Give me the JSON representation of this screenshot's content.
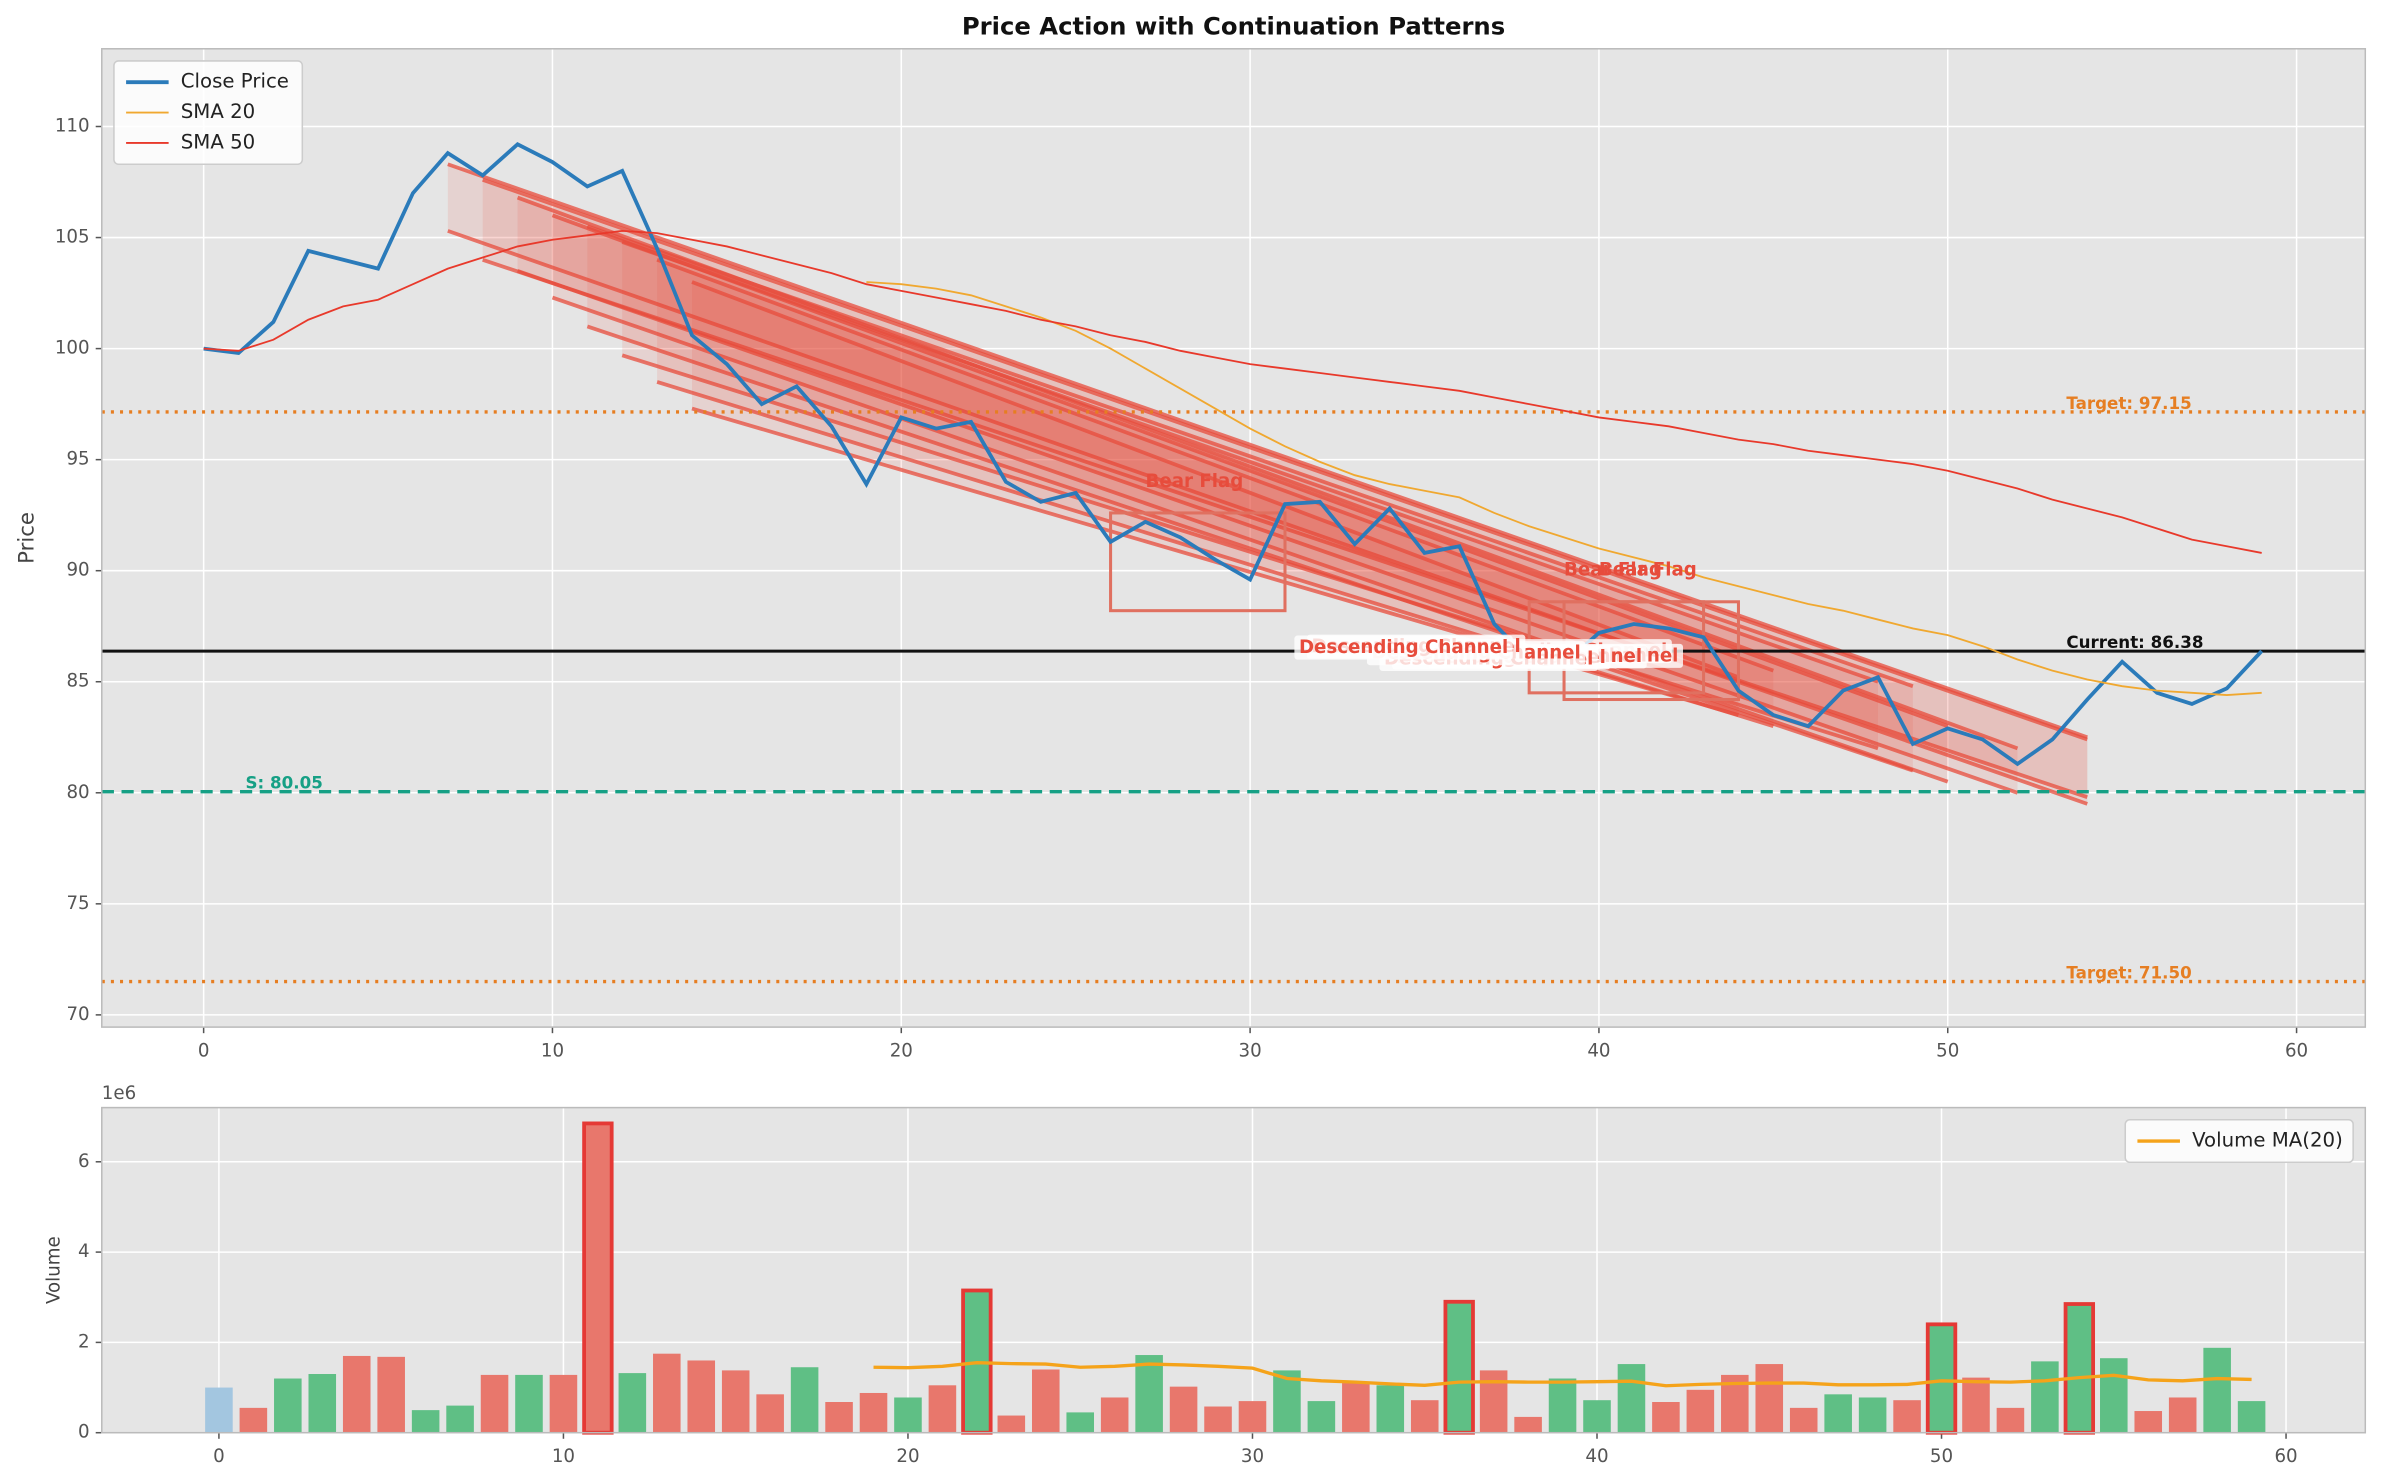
{
  "chart_data": [
    {
      "type": "line",
      "title": "Price Action with Continuation Patterns",
      "ylabel": "Price",
      "xlim": [
        -2.92,
        61.97
      ],
      "ylim": [
        69.45,
        113.5
      ],
      "xticks": [
        0,
        10,
        20,
        30,
        40,
        50,
        60
      ],
      "yticks": [
        70,
        75,
        80,
        85,
        90,
        95,
        100,
        105,
        110
      ],
      "grid": true,
      "legend": "upper left",
      "x": [
        0,
        1,
        2,
        3,
        4,
        5,
        6,
        7,
        8,
        9,
        10,
        11,
        12,
        13,
        14,
        15,
        16,
        17,
        18,
        19,
        20,
        21,
        22,
        23,
        24,
        25,
        26,
        27,
        28,
        29,
        30,
        31,
        32,
        33,
        34,
        35,
        36,
        37,
        38,
        39,
        40,
        41,
        42,
        43,
        44,
        45,
        46,
        47,
        48,
        49,
        50,
        51,
        52,
        53,
        54,
        55,
        56,
        57,
        58,
        59
      ],
      "series": [
        {
          "name": "Close Price",
          "color": "#2b7bba",
          "width": 2.5,
          "values": [
            100.0,
            99.8,
            101.2,
            104.4,
            104.0,
            103.6,
            107.0,
            108.8,
            107.8,
            109.2,
            108.4,
            107.3,
            108.0,
            104.5,
            100.6,
            99.3,
            97.5,
            98.3,
            96.5,
            93.9,
            96.9,
            96.4,
            96.7,
            94.0,
            93.1,
            93.5,
            91.3,
            92.2,
            91.5,
            90.5,
            89.6,
            93.0,
            93.1,
            91.2,
            92.8,
            90.8,
            91.1,
            87.6,
            86.0,
            85.8,
            87.2,
            87.6,
            87.4,
            87.0,
            84.6,
            83.5,
            83.0,
            84.6,
            85.2,
            82.2,
            82.9,
            82.4,
            81.3,
            82.4,
            84.2,
            85.9,
            84.5,
            84.0,
            84.7,
            86.38
          ]
        },
        {
          "name": "SMA 20",
          "color": "#f0a830",
          "width": 1.2,
          "values": [
            null,
            null,
            null,
            null,
            null,
            null,
            null,
            null,
            null,
            null,
            null,
            null,
            null,
            null,
            null,
            null,
            null,
            null,
            null,
            103.0,
            102.9,
            102.7,
            102.4,
            101.9,
            101.4,
            100.8,
            100.0,
            99.1,
            98.2,
            97.3,
            96.4,
            95.6,
            94.9,
            94.3,
            93.9,
            93.6,
            93.3,
            92.6,
            92.0,
            91.5,
            91.0,
            90.6,
            90.2,
            89.7,
            89.3,
            88.9,
            88.5,
            88.2,
            87.8,
            87.4,
            87.1,
            86.6,
            86.0,
            85.5,
            85.1,
            84.8,
            84.6,
            84.5,
            84.4,
            84.5
          ]
        },
        {
          "name": "SMA 50",
          "color": "#e8392b",
          "width": 1.2,
          "values": [
            100.0,
            99.9,
            100.4,
            101.3,
            101.9,
            102.2,
            102.9,
            103.6,
            104.1,
            104.6,
            104.9,
            105.1,
            105.3,
            105.2,
            104.9,
            104.6,
            104.2,
            103.8,
            103.4,
            102.9,
            102.6,
            102.3,
            102.0,
            101.7,
            101.3,
            101.0,
            100.6,
            100.3,
            99.9,
            99.6,
            99.3,
            99.1,
            98.9,
            98.7,
            98.5,
            98.3,
            98.1,
            97.8,
            97.5,
            97.2,
            96.9,
            96.7,
            96.5,
            96.2,
            95.9,
            95.7,
            95.4,
            95.2,
            95.0,
            94.8,
            94.5,
            94.1,
            93.7,
            93.2,
            92.8,
            92.4,
            91.9,
            91.4,
            91.1,
            90.8
          ]
        }
      ],
      "hlines": [
        {
          "label": "Target: 97.15",
          "value": 97.15,
          "color": "#e67e22",
          "style": "dotted",
          "label_side": "right"
        },
        {
          "label": "Target: 71.50",
          "value": 71.5,
          "color": "#e67e22",
          "style": "dotted",
          "label_side": "right"
        },
        {
          "label": "S: 80.05",
          "value": 80.05,
          "color": "#16a085",
          "style": "dashed",
          "label_side": "left"
        },
        {
          "label": "Current: 86.38",
          "value": 86.38,
          "color": "#111111",
          "style": "solid",
          "label_side": "right"
        }
      ],
      "patterns": [
        {
          "label": "Descending Channel",
          "x": [
            7,
            54
          ],
          "upper": [
            108.3,
            82.5
          ],
          "lower": [
            105.3,
            79.5
          ]
        },
        {
          "label": "Descending Channel",
          "x": [
            8,
            54
          ],
          "upper": [
            107.6,
            82.4
          ],
          "lower": [
            104.0,
            79.8
          ]
        },
        {
          "label": "Descending Channel",
          "x": [
            9,
            52
          ],
          "upper": [
            106.8,
            82.0
          ],
          "lower": [
            103.5,
            80.0
          ]
        },
        {
          "label": "Descending Channel",
          "x": [
            10,
            50
          ],
          "upper": [
            106.0,
            83.0
          ],
          "lower": [
            102.3,
            80.5
          ]
        },
        {
          "label": "Descending Channel",
          "x": [
            11,
            49
          ],
          "upper": [
            105.5,
            84.8
          ],
          "lower": [
            101.0,
            81.0
          ]
        },
        {
          "label": "Descending Channel",
          "x": [
            12,
            48
          ],
          "upper": [
            104.8,
            85.0
          ],
          "lower": [
            99.7,
            82.0
          ]
        },
        {
          "label": "Descending Channel",
          "x": [
            13,
            45
          ],
          "upper": [
            104.0,
            85.5
          ],
          "lower": [
            98.5,
            83.0
          ]
        },
        {
          "label": "Descending Channel",
          "x": [
            14,
            44
          ],
          "upper": [
            103.0,
            85.2
          ],
          "lower": [
            97.3,
            83.5
          ]
        }
      ],
      "flags": [
        {
          "label": "Bear Flag",
          "x": [
            26,
            31
          ],
          "box": [
            88.2,
            92.6
          ]
        },
        {
          "label": "Bear Flag",
          "x": [
            38,
            43
          ],
          "box": [
            84.5,
            88.6
          ]
        },
        {
          "label": "Bear Flag",
          "x": [
            39,
            44
          ],
          "box": [
            84.2,
            88.6
          ]
        }
      ]
    },
    {
      "type": "bar",
      "ylabel": "Volume",
      "offset_label": "1e6",
      "xlim": [
        -3.4,
        62.3
      ],
      "ylim": [
        0,
        7.2
      ],
      "xticks": [
        0,
        10,
        20,
        30,
        40,
        50,
        60
      ],
      "yticks": [
        0,
        2,
        4,
        6
      ],
      "grid": true,
      "legend": "upper right",
      "x": [
        0,
        1,
        2,
        3,
        4,
        5,
        6,
        7,
        8,
        9,
        10,
        11,
        12,
        13,
        14,
        15,
        16,
        17,
        18,
        19,
        20,
        21,
        22,
        23,
        24,
        25,
        26,
        27,
        28,
        29,
        30,
        31,
        32,
        33,
        34,
        35,
        36,
        37,
        38,
        39,
        40,
        41,
        42,
        43,
        44,
        45,
        46,
        47,
        48,
        49,
        50,
        51,
        52,
        53,
        54,
        55,
        56,
        57,
        58,
        59
      ],
      "values": [
        1.0,
        0.55,
        1.2,
        1.3,
        1.7,
        1.68,
        0.5,
        0.6,
        1.28,
        1.28,
        1.28,
        6.85,
        1.32,
        1.75,
        1.6,
        1.38,
        0.85,
        1.45,
        0.68,
        0.88,
        0.78,
        1.05,
        3.15,
        0.38,
        1.4,
        0.45,
        0.78,
        1.72,
        1.02,
        0.58,
        0.7,
        1.38,
        0.7,
        1.1,
        1.05,
        0.72,
        2.9,
        1.38,
        0.35,
        1.2,
        0.72,
        1.52,
        0.68,
        0.95,
        1.28,
        1.52,
        0.55,
        0.85,
        0.78,
        0.72,
        2.4,
        1.22,
        0.55,
        1.58,
        2.85,
        1.65,
        0.48,
        0.78,
        1.88,
        0.7
      ],
      "colors": [
        "#a3c6e0",
        "#e8776c",
        "#5fbf85",
        "#5fbf85",
        "#e8776c",
        "#e8776c",
        "#5fbf85",
        "#5fbf85",
        "#e8776c",
        "#5fbf85",
        "#e8776c",
        "#e8776c",
        "#5fbf85",
        "#e8776c",
        "#e8776c",
        "#e8776c",
        "#e8776c",
        "#5fbf85",
        "#e8776c",
        "#e8776c",
        "#5fbf85",
        "#e8776c",
        "#5fbf85",
        "#e8776c",
        "#e8776c",
        "#5fbf85",
        "#e8776c",
        "#5fbf85",
        "#e8776c",
        "#e8776c",
        "#e8776c",
        "#5fbf85",
        "#5fbf85",
        "#e8776c",
        "#5fbf85",
        "#e8776c",
        "#5fbf85",
        "#e8776c",
        "#e8776c",
        "#5fbf85",
        "#5fbf85",
        "#5fbf85",
        "#e8776c",
        "#e8776c",
        "#e8776c",
        "#e8776c",
        "#e8776c",
        "#5fbf85",
        "#5fbf85",
        "#e8776c",
        "#5fbf85",
        "#e8776c",
        "#e8776c",
        "#5fbf85",
        "#5fbf85",
        "#5fbf85",
        "#e8776c",
        "#e8776c",
        "#5fbf85",
        "#5fbf85"
      ],
      "highlight": [
        11,
        22,
        36,
        50,
        54
      ],
      "highlight_color": "#e53935",
      "series": [
        {
          "name": "Volume MA(20)",
          "color": "#f5a31a",
          "values": [
            null,
            null,
            null,
            null,
            null,
            null,
            null,
            null,
            null,
            null,
            null,
            null,
            null,
            null,
            null,
            null,
            null,
            null,
            null,
            1.45,
            1.44,
            1.47,
            1.55,
            1.53,
            1.52,
            1.45,
            1.47,
            1.52,
            1.5,
            1.47,
            1.43,
            1.2,
            1.15,
            1.12,
            1.08,
            1.05,
            1.12,
            1.13,
            1.12,
            1.12,
            1.13,
            1.14,
            1.04,
            1.07,
            1.09,
            1.1,
            1.1,
            1.06,
            1.06,
            1.07,
            1.15,
            1.13,
            1.12,
            1.15,
            1.22,
            1.27,
            1.17,
            1.15,
            1.2,
            1.18
          ]
        }
      ]
    }
  ]
}
